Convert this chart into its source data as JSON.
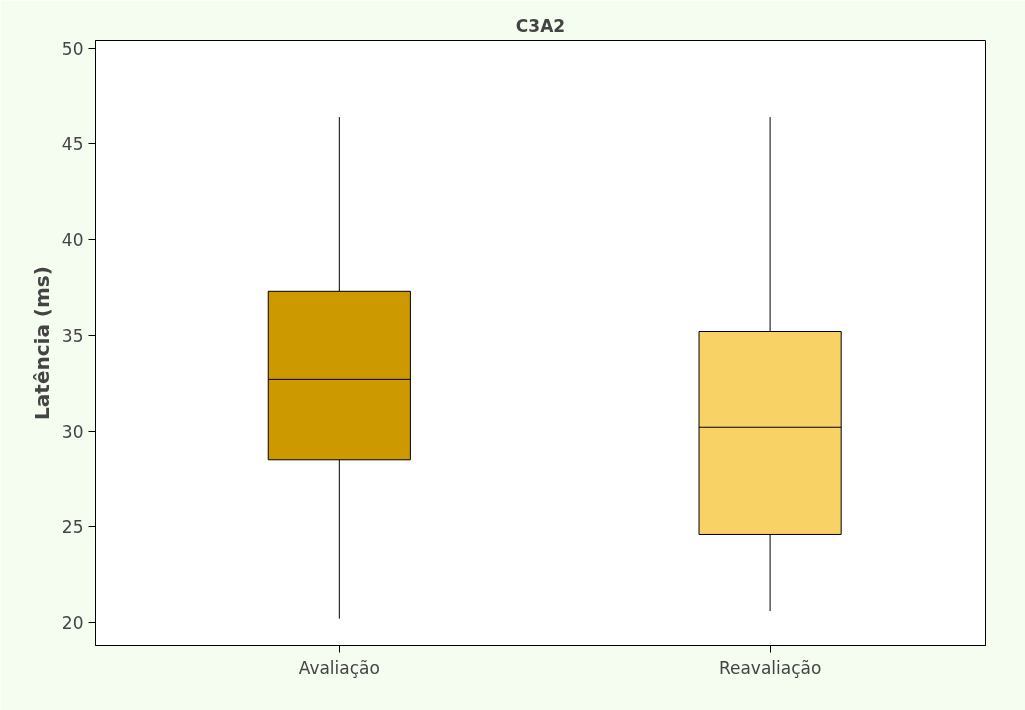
{
  "chart_data": {
    "type": "box",
    "title": "C3A2",
    "ylabel": "Latência (ms)",
    "categories": [
      "Avaliação",
      "Reavaliação"
    ],
    "colors": [
      "#cc9900",
      "#f9d266"
    ],
    "boxes": [
      {
        "low": 20.2,
        "q1": 28.5,
        "median": 32.7,
        "q3": 37.3,
        "high": 46.4
      },
      {
        "low": 20.6,
        "q1": 24.6,
        "median": 30.2,
        "q3": 35.2,
        "high": 46.4
      }
    ],
    "ylim": [
      18.8,
      50.4
    ],
    "yticks": [
      20,
      25,
      30,
      35,
      40,
      45,
      50
    ],
    "grid": false
  }
}
